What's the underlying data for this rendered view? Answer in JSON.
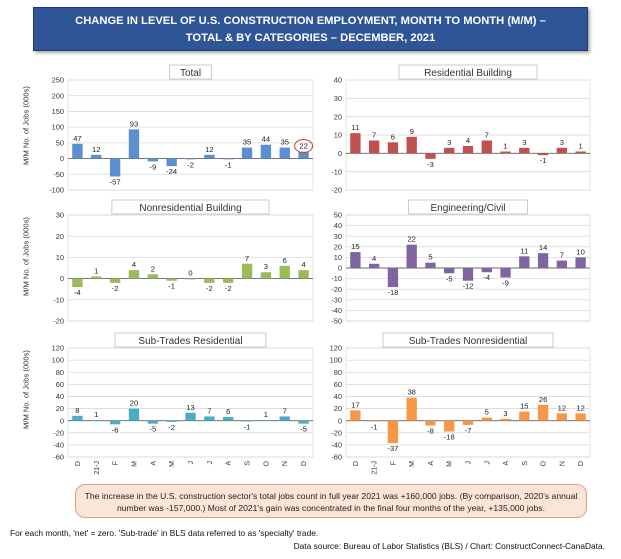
{
  "header": {
    "title_line1": "CHANGE IN LEVEL OF U.S. CONSTRUCTION EMPLOYMENT, MONTH TO MONTH (M/M) –",
    "title_line2": "TOTAL & BY CATEGORIES – DECEMBER, 2021"
  },
  "y_axis_label": "M/M No. of Jobs (000s)",
  "colors": {
    "total": "#5b8fd0",
    "residential": "#c0504d",
    "nonresidential": "#9bbb59",
    "civil": "#8064a2",
    "subres": "#4bacc6",
    "subnonres": "#f79646",
    "highlight": "#e03c31"
  },
  "chart_data": [
    {
      "type": "bar",
      "title": "Total",
      "color_key": "total",
      "categories": [
        "D",
        "21-J",
        "F",
        "M",
        "A",
        "M",
        "J",
        "J",
        "A",
        "S",
        "O",
        "N",
        "D"
      ],
      "values": [
        47,
        12,
        -57,
        93,
        -9,
        -24,
        -2,
        12,
        -1,
        35,
        44,
        35,
        22
      ],
      "ylim": [
        -100,
        250
      ],
      "ticks": [
        -100,
        -50,
        0,
        50,
        100,
        150,
        200,
        250
      ],
      "highlight_index": 12,
      "show_xlabels": false
    },
    {
      "type": "bar",
      "title": "Residential Building",
      "color_key": "residential",
      "categories": [
        "D",
        "21-J",
        "F",
        "M",
        "A",
        "M",
        "J",
        "J",
        "A",
        "S",
        "O",
        "N",
        "D"
      ],
      "values": [
        11,
        7,
        6,
        9,
        -3,
        3,
        4,
        7,
        1,
        3,
        -1,
        3,
        1
      ],
      "ylim": [
        -20,
        40
      ],
      "ticks": [
        -20,
        -10,
        0,
        10,
        20,
        30,
        40
      ],
      "show_xlabels": false
    },
    {
      "type": "bar",
      "title": "Nonresidential Building",
      "color_key": "nonresidential",
      "categories": [
        "D",
        "21-J",
        "F",
        "M",
        "A",
        "M",
        "J",
        "J",
        "A",
        "S",
        "O",
        "N",
        "D"
      ],
      "values": [
        -4,
        1,
        -2,
        4,
        2,
        -1,
        0,
        -2,
        -2,
        7,
        3,
        6,
        4
      ],
      "ylim": [
        -20,
        30
      ],
      "ticks": [
        -20,
        -10,
        0,
        10,
        20,
        30
      ],
      "show_xlabels": false
    },
    {
      "type": "bar",
      "title": "Engineering/Civil",
      "color_key": "civil",
      "categories": [
        "D",
        "21-J",
        "F",
        "M",
        "A",
        "M",
        "J",
        "J",
        "A",
        "S",
        "O",
        "N",
        "D"
      ],
      "values": [
        15,
        4,
        -18,
        22,
        5,
        -5,
        -12,
        -4,
        -9,
        11,
        14,
        7,
        10
      ],
      "ylim": [
        -50,
        50
      ],
      "ticks": [
        -50,
        -40,
        -30,
        -20,
        -10,
        0,
        10,
        20,
        30,
        40,
        50
      ],
      "show_xlabels": false
    },
    {
      "type": "bar",
      "title": "Sub-Trades Residential",
      "color_key": "subres",
      "categories": [
        "D",
        "21-J",
        "F",
        "M",
        "A",
        "M",
        "J",
        "J",
        "A",
        "S",
        "O",
        "N",
        "D"
      ],
      "values": [
        8,
        1,
        -6,
        20,
        -5,
        -2,
        13,
        7,
        6,
        -1,
        1,
        7,
        -5
      ],
      "ylim": [
        -60,
        120
      ],
      "ticks": [
        -60,
        -40,
        -20,
        0,
        20,
        40,
        60,
        80,
        100,
        120
      ],
      "show_xlabels": true
    },
    {
      "type": "bar",
      "title": "Sub-Trades Nonresidential",
      "color_key": "subnonres",
      "categories": [
        "D",
        "21-J",
        "F",
        "M",
        "A",
        "M",
        "J",
        "J",
        "A",
        "S",
        "O",
        "N",
        "D"
      ],
      "values": [
        17,
        -1,
        -37,
        38,
        -8,
        -18,
        -7,
        5,
        3,
        15,
        26,
        12,
        12
      ],
      "ylim": [
        -60,
        120
      ],
      "ticks": [
        -60,
        -40,
        -20,
        0,
        20,
        40,
        60,
        80,
        100,
        120
      ],
      "show_xlabels": true
    }
  ],
  "note": {
    "text": "The increase in the U.S. construction sector's total jobs count in full year 2021 was +160,000 jobs. (By comparison, 2020's annual number was -157,000.) Most of 2021's gain was concentrated in the final four months of the year, +135,000 jobs."
  },
  "footer": {
    "line1": "For each month, 'net' = zero. 'Sub-trade' in BLS data referred to as 'specialty' trade.",
    "line2": "Data source: Bureau of Labor Statistics (BLS) / Chart: ConstructConnect-CanaData."
  }
}
